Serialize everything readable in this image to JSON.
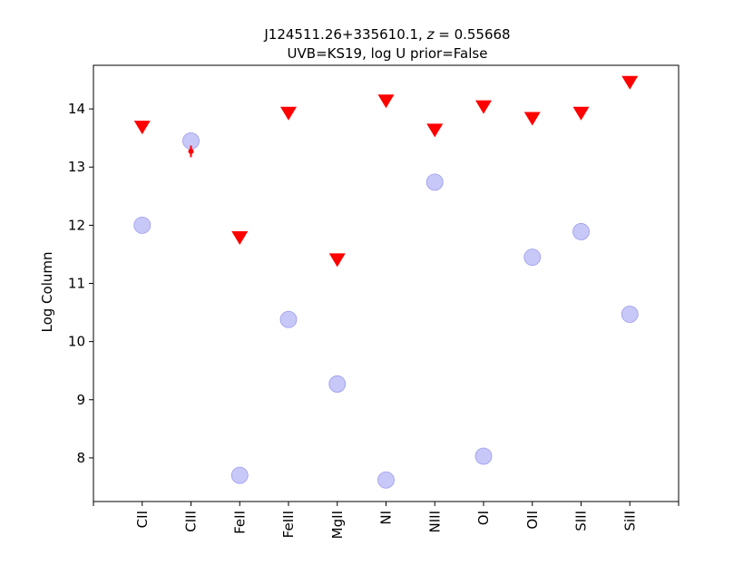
{
  "chart_data": {
    "type": "scatter",
    "title_line1": "J124511.26+335610.1, z = 0.55668",
    "title_line1_prefix": "J124511.26+335610.1, ",
    "title_line1_var": "z",
    "title_line1_suffix": " = 0.55668",
    "title_line2": "UVB=KS19, log U prior=False",
    "xlabel": "",
    "ylabel": "Log Column",
    "categories": [
      "CII",
      "CIII",
      "FeII",
      "FeIII",
      "MgII",
      "NI",
      "NIII",
      "OI",
      "OII",
      "SIII",
      "SiII"
    ],
    "ylim": [
      7.25,
      14.75
    ],
    "yticks": [
      8,
      9,
      10,
      11,
      12,
      13,
      14
    ],
    "grid": false,
    "legend": "none",
    "series": [
      {
        "kind": "model",
        "marker": "circle",
        "color": "#b0b0f5",
        "values": [
          12.0,
          13.45,
          7.7,
          10.38,
          9.27,
          7.62,
          12.74,
          8.03,
          11.45,
          11.89,
          10.47
        ]
      },
      {
        "kind": "upper_limit",
        "marker": "triangle-down",
        "color": "#ff0000",
        "values": [
          13.68,
          null,
          11.78,
          13.92,
          11.4,
          14.13,
          13.63,
          14.03,
          13.83,
          13.92,
          14.45
        ]
      },
      {
        "kind": "measurement",
        "marker": "point-errorbar",
        "color": "#ff0000",
        "values": [
          null,
          13.27,
          null,
          null,
          null,
          null,
          null,
          null,
          null,
          null,
          null
        ],
        "errors": [
          null,
          0.1,
          null,
          null,
          null,
          null,
          null,
          null,
          null,
          null,
          null
        ]
      }
    ]
  }
}
